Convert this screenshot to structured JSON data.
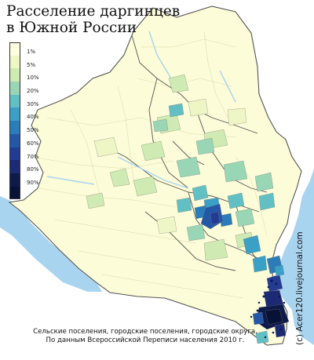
{
  "map": {
    "title_line1": "Расселение даргинцев",
    "title_line2": "в Южной России",
    "legend": [
      {
        "label": "1%",
        "color": "#fdfde0"
      },
      {
        "label": "5%",
        "color": "#eef6c6"
      },
      {
        "label": "10%",
        "color": "#cfeab2"
      },
      {
        "label": "20%",
        "color": "#99d6b6"
      },
      {
        "label": "30%",
        "color": "#62bfc3"
      },
      {
        "label": "40%",
        "color": "#3aa0c6"
      },
      {
        "label": "50%",
        "color": "#2a7db8"
      },
      {
        "label": "60%",
        "color": "#2458a6"
      },
      {
        "label": "70%",
        "color": "#243b94"
      },
      {
        "label": "80%",
        "color": "#1c2a74"
      },
      {
        "label": "90%",
        "color": "#0e1a4a"
      },
      {
        "label": "",
        "color": "#081236"
      }
    ],
    "caption_line1": "Сельские поселения, городские поселения, городские округа.",
    "caption_line2": "По данным Всероссийской Переписи населения 2010 г.",
    "credit": "(c) Acer120.livejournal.com",
    "colors": {
      "sea": "#a9d4ef",
      "land_base": "#fcfcd8",
      "border": "#555555"
    }
  }
}
